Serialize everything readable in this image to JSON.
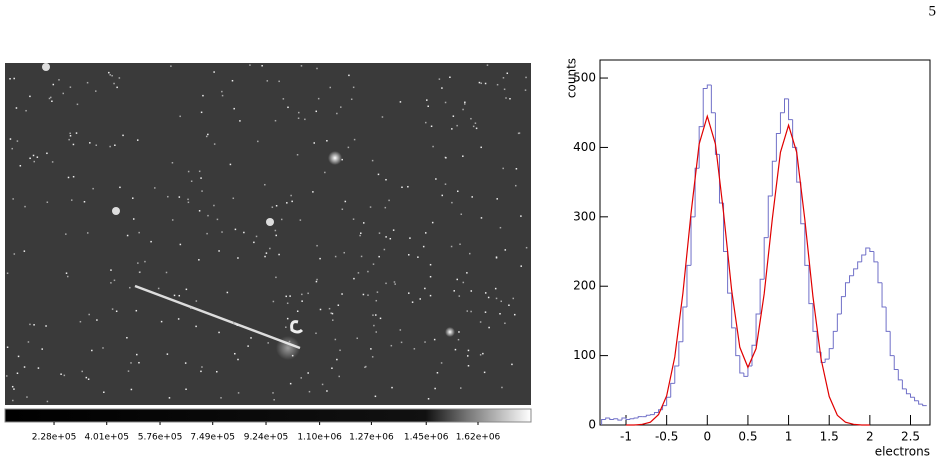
{
  "page_number": "5",
  "chart_data": [
    {
      "type": "image",
      "clim": [
        67000,
        1794000
      ],
      "colorbar_ticks": [
        {
          "value": 228000,
          "label": "2.28e+05"
        },
        {
          "value": 401000,
          "label": "4.01e+05"
        },
        {
          "value": 576000,
          "label": "5.76e+05"
        },
        {
          "value": 749000,
          "label": "7.49e+05"
        },
        {
          "value": 924000,
          "label": "9.24e+05"
        },
        {
          "value": 1100000,
          "label": "1.10e+06"
        },
        {
          "value": 1270000,
          "label": "1.27e+06"
        },
        {
          "value": 1450000,
          "label": "1.45e+06"
        },
        {
          "value": 1620000,
          "label": "1.62e+06"
        }
      ]
    },
    {
      "type": "histogram",
      "xlabel": "electrons",
      "ylabel": "counts",
      "color": "#7070c8",
      "bins": [
        -1.3,
        -1.25,
        -1.2,
        -1.15,
        -1.1,
        -1.05,
        -1.0,
        -0.95,
        -0.9,
        -0.85,
        -0.8,
        -0.75,
        -0.7,
        -0.65,
        -0.6,
        -0.55,
        -0.5,
        -0.45,
        -0.4,
        -0.35,
        -0.3,
        -0.25,
        -0.2,
        -0.15,
        -0.1,
        -0.05,
        0.0,
        0.05,
        0.1,
        0.15,
        0.2,
        0.25,
        0.3,
        0.35,
        0.4,
        0.45,
        0.5,
        0.55,
        0.6,
        0.65,
        0.7,
        0.75,
        0.8,
        0.85,
        0.9,
        0.95,
        1.0,
        1.05,
        1.1,
        1.15,
        1.2,
        1.25,
        1.3,
        1.35,
        1.4,
        1.45,
        1.5,
        1.55,
        1.6,
        1.65,
        1.7,
        1.75,
        1.8,
        1.85,
        1.9,
        1.95,
        2.0,
        2.05,
        2.1,
        2.15,
        2.2,
        2.25,
        2.3,
        2.35,
        2.4,
        2.45,
        2.5,
        2.55,
        2.6,
        2.65,
        2.7
      ],
      "counts": [
        8,
        10,
        8,
        9,
        7,
        10,
        8,
        9,
        10,
        12,
        12,
        14,
        15,
        18,
        22,
        28,
        40,
        60,
        85,
        120,
        170,
        230,
        300,
        370,
        430,
        485,
        490,
        450,
        390,
        320,
        250,
        190,
        140,
        100,
        75,
        70,
        85,
        115,
        160,
        210,
        270,
        330,
        380,
        420,
        450,
        470,
        440,
        400,
        350,
        290,
        230,
        175,
        135,
        105,
        90,
        95,
        110,
        135,
        160,
        185,
        205,
        215,
        225,
        235,
        245,
        255,
        250,
        235,
        205,
        170,
        135,
        100,
        80,
        65,
        52,
        45,
        40,
        35,
        30,
        28
      ],
      "line": {
        "color": "#e00000",
        "x": [
          -1.0,
          -0.9,
          -0.8,
          -0.7,
          -0.6,
          -0.5,
          -0.4,
          -0.3,
          -0.2,
          -0.1,
          0.0,
          0.1,
          0.2,
          0.3,
          0.4,
          0.5,
          0.6,
          0.7,
          0.8,
          0.9,
          1.0,
          1.1,
          1.2,
          1.3,
          1.4,
          1.5,
          1.6,
          1.7,
          1.8,
          1.9,
          2.0
        ],
        "values": [
          0,
          0,
          1,
          4,
          15,
          42,
          98,
          190,
          305,
          405,
          445,
          405,
          306,
          194,
          112,
          83,
          110,
          189,
          297,
          393,
          432,
          393,
          296,
          185,
          95,
          41,
          14,
          4,
          1,
          0,
          0
        ]
      },
      "xlim": [
        -1.32,
        2.74
      ],
      "ylim": [
        0,
        526
      ],
      "xticks": [
        -1,
        -0.5,
        0,
        0.5,
        1,
        1.5,
        2,
        2.5
      ],
      "yticks": [
        0,
        100,
        200,
        300,
        400,
        500
      ]
    }
  ]
}
